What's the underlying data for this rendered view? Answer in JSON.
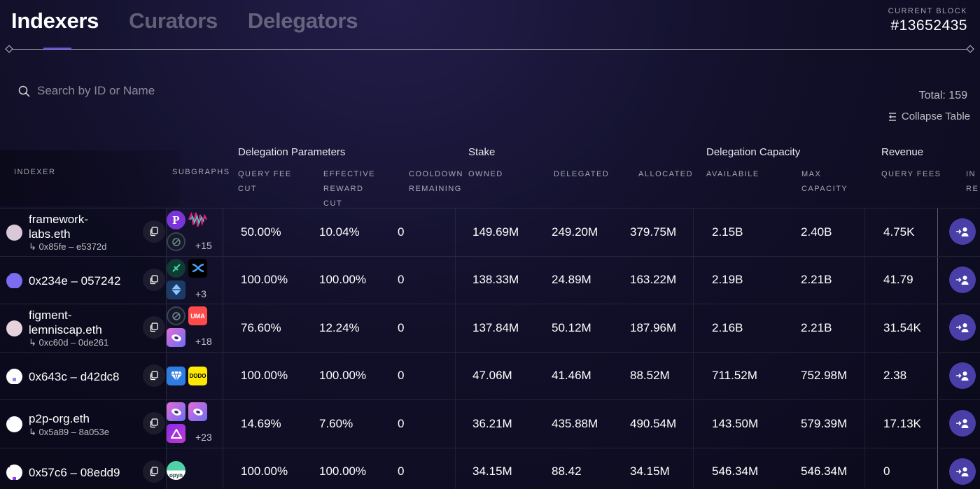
{
  "tabs": [
    {
      "label": "Indexers",
      "active": true
    },
    {
      "label": "Curators",
      "active": false
    },
    {
      "label": "Delegators",
      "active": false
    }
  ],
  "current_block": {
    "label": "CURRENT BLOCK",
    "value": "#13652435"
  },
  "search": {
    "placeholder": "Search by ID or Name"
  },
  "total": "Total: 159",
  "collapse_label": "Collapse Table",
  "groups": {
    "delegation_parameters": "Delegation Parameters",
    "stake": "Stake",
    "delegation_capacity": "Delegation Capacity",
    "revenue": "Revenue"
  },
  "columns": {
    "indexer": "INDEXER",
    "subgraphs": "SUBGRAPHS",
    "query_fee_cut_1": "QUERY FEE",
    "query_fee_cut_2": "CUT",
    "effective_reward_cut_1": "EFFECTIVE",
    "effective_reward_cut_2": "REWARD",
    "effective_reward_cut_3": "CUT",
    "cooldown_1": "COOLDOWN",
    "cooldown_2": "REMAINING",
    "owned": "OWNED",
    "delegated": "DELEGATED",
    "allocated": "ALLOCATED",
    "available": "AVAILABILE",
    "max_capacity_1": "MAX",
    "max_capacity_2": "CAPACITY",
    "query_fees": "QUERY FEES",
    "indexer_rewards_1": "IN",
    "indexer_rewards_2": "RE"
  },
  "rows": [
    {
      "name": "framework-labs.eth",
      "name_line1": "framework-",
      "name_line2": "labs.eth",
      "address": "↳ 0x85fe – e5372d",
      "more_subgraphs": "+15",
      "subgraph_icons": [
        "p-logo-icon",
        "wave-logo-icon",
        "ring-logo-icon"
      ],
      "query_fee_cut": "50.00%",
      "effective_reward_cut": "10.04%",
      "cooldown": "0",
      "owned": "149.69M",
      "delegated": "249.20M",
      "allocated": "379.75M",
      "available": "2.15B",
      "max_capacity": "2.40B",
      "query_fees": "4.75K"
    },
    {
      "name": "0x234e – 057242",
      "name_line1": "0x234e – 057242",
      "name_line2": "",
      "address": "",
      "more_subgraphs": "+3",
      "subgraph_icons": [
        "leaf-logo-icon",
        "x-logo-icon",
        "diamond-logo-icon"
      ],
      "query_fee_cut": "100.00%",
      "effective_reward_cut": "100.00%",
      "cooldown": "0",
      "owned": "138.33M",
      "delegated": "24.89M",
      "allocated": "163.22M",
      "available": "2.19B",
      "max_capacity": "2.21B",
      "query_fees": "41.79"
    },
    {
      "name": "figment-lemniscap.eth",
      "name_line1": "figment-",
      "name_line2": "lemniscap.eth",
      "address": "↳ 0xc60d – 0de261",
      "more_subgraphs": "+18",
      "subgraph_icons": [
        "ring-logo-icon",
        "uma-logo-icon",
        "disc-logo-icon"
      ],
      "uma_text": "UMA",
      "query_fee_cut": "76.60%",
      "effective_reward_cut": "12.24%",
      "cooldown": "0",
      "owned": "137.84M",
      "delegated": "50.12M",
      "allocated": "187.96M",
      "available": "2.16B",
      "max_capacity": "2.21B",
      "query_fees": "31.54K"
    },
    {
      "name": "0x643c – d42dc8",
      "name_line1": "0x643c – d42dc8",
      "name_line2": "",
      "address": "",
      "more_subgraphs": "",
      "subgraph_icons": [
        "gem-logo-icon",
        "dodo-logo-icon"
      ],
      "dodo_text": "DODO",
      "query_fee_cut": "100.00%",
      "effective_reward_cut": "100.00%",
      "cooldown": "0",
      "owned": "47.06M",
      "delegated": "41.46M",
      "allocated": "88.52M",
      "available": "711.52M",
      "max_capacity": "752.98M",
      "query_fees": "2.38"
    },
    {
      "name": "p2p-org.eth",
      "name_line1": "p2p-org.eth",
      "name_line2": "",
      "address": "↳ 0x5a89 – 8a053e",
      "more_subgraphs": "+23",
      "subgraph_icons": [
        "disc-logo-icon",
        "disc-logo-icon",
        "triangle-logo-icon"
      ],
      "query_fee_cut": "14.69%",
      "effective_reward_cut": "7.60%",
      "cooldown": "0",
      "owned": "36.21M",
      "delegated": "435.88M",
      "allocated": "490.54M",
      "available": "143.50M",
      "max_capacity": "579.39M",
      "query_fees": "17.13K"
    },
    {
      "name": "0x57c6 – 08edd9",
      "name_line1": "0x57c6 – 08edd9",
      "name_line2": "",
      "address": "",
      "more_subgraphs": "",
      "subgraph_icons": [
        "opyn-logo-icon"
      ],
      "opyn_text": "opyn",
      "query_fee_cut": "100.00%",
      "effective_reward_cut": "100.00%",
      "cooldown": "0",
      "owned": "34.15M",
      "delegated": "88.42",
      "allocated": "34.15M",
      "available": "546.34M",
      "max_capacity": "546.34M",
      "query_fees": "0"
    }
  ],
  "colors": {
    "accent": "#6f4cff",
    "action_button": "#4a3fa8"
  }
}
